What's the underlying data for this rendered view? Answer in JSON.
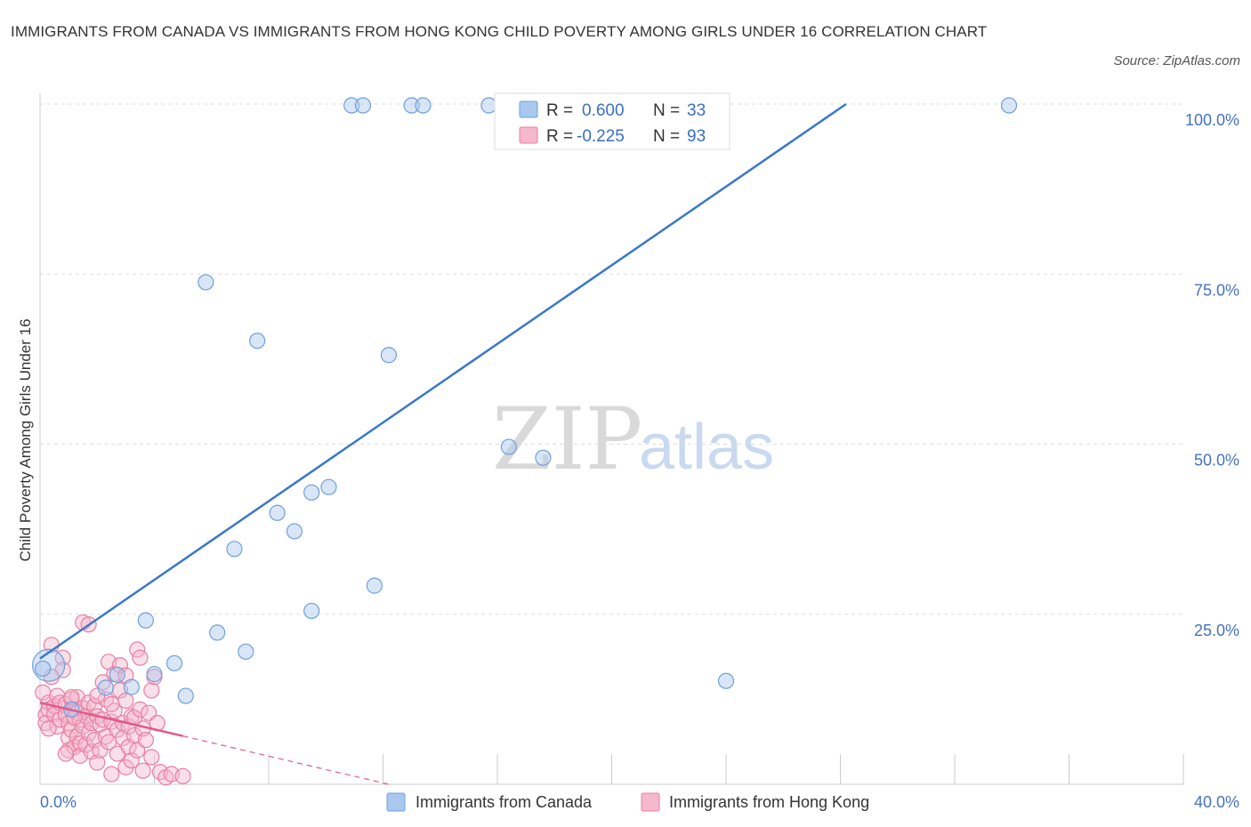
{
  "header": {
    "title": "IMMIGRANTS FROM CANADA VS IMMIGRANTS FROM HONG KONG CHILD POVERTY AMONG GIRLS UNDER 16 CORRELATION CHART",
    "source": "Source: ZipAtlas.com"
  },
  "watermark": {
    "zip": "ZIP",
    "atlas": "atlas"
  },
  "legend": {
    "r_label": "R =",
    "n_label": "N =",
    "canada": {
      "r": "0.600",
      "n": "33"
    },
    "hongkong": {
      "r": "-0.225",
      "n": "93"
    }
  },
  "bottom_legend": {
    "canada": "Immigrants from Canada",
    "hongkong": "Immigrants from Hong Kong"
  },
  "colors": {
    "canada_fill": "#aac8ee",
    "canada_stroke": "#6f9fdc",
    "canada_line": "#3a78c8",
    "hongkong_fill": "#f5b8cc",
    "hongkong_stroke": "#e87fa2",
    "hongkong_line": "#e05a8a",
    "grid": "#dddddd",
    "tick_text": "#4472c4"
  },
  "chart_data": {
    "type": "scatter",
    "title": "IMMIGRANTS FROM CANADA VS IMMIGRANTS FROM HONG KONG CHILD POVERTY AMONG GIRLS UNDER 16 CORRELATION CHART",
    "xlabel": "",
    "ylabel": "Child Poverty Among Girls Under 16",
    "xlim": [
      0,
      40
    ],
    "ylim": [
      0,
      100
    ],
    "x_tick_labels": [
      "0.0%",
      "40.0%"
    ],
    "y_tick_labels": [
      "25.0%",
      "50.0%",
      "75.0%",
      "100.0%"
    ],
    "y_ticks": [
      25,
      50,
      75,
      100
    ],
    "grid": true,
    "legend_position": "top-center",
    "series": [
      {
        "name": "Immigrants from Canada",
        "r": 0.6,
        "n": 33,
        "trend": {
          "x": [
            0,
            28.2
          ],
          "y": [
            18.5,
            100
          ]
        },
        "points": [
          [
            0.3,
            17.5
          ],
          [
            2.3,
            14.2
          ],
          [
            2.7,
            16.1
          ],
          [
            3.2,
            14.3
          ],
          [
            3.7,
            24.1
          ],
          [
            4.0,
            16.2
          ],
          [
            4.7,
            17.8
          ],
          [
            5.1,
            13.0
          ],
          [
            5.8,
            73.8
          ],
          [
            6.2,
            22.3
          ],
          [
            7.2,
            19.5
          ],
          [
            7.6,
            65.2
          ],
          [
            6.8,
            34.6
          ],
          [
            8.3,
            39.9
          ],
          [
            8.9,
            37.2
          ],
          [
            9.5,
            42.9
          ],
          [
            9.5,
            25.5
          ],
          [
            10.1,
            43.7
          ],
          [
            11.7,
            29.2
          ],
          [
            12.2,
            63.1
          ],
          [
            16.4,
            49.6
          ],
          [
            17.6,
            48.0
          ],
          [
            24.0,
            15.2
          ],
          [
            10.9,
            99.8
          ],
          [
            11.3,
            99.8
          ],
          [
            13.0,
            99.8
          ],
          [
            13.4,
            99.8
          ],
          [
            15.7,
            99.8
          ],
          [
            17.2,
            99.8
          ],
          [
            18.1,
            99.8
          ],
          [
            33.9,
            99.8
          ],
          [
            0.1,
            17.0
          ],
          [
            1.1,
            11.0
          ]
        ]
      },
      {
        "name": "Immigrants from Hong Kong",
        "r": -0.225,
        "n": 93,
        "trend_solid": {
          "x": [
            0,
            5.0
          ],
          "y": [
            12.0,
            7.1
          ]
        },
        "trend_dashed": {
          "x": [
            5.0,
            12.2
          ],
          "y": [
            7.1,
            0.0
          ]
        },
        "points": [
          [
            0.1,
            13.5
          ],
          [
            0.2,
            10.2
          ],
          [
            0.2,
            9.0
          ],
          [
            0.3,
            12.0
          ],
          [
            0.3,
            11.0
          ],
          [
            0.4,
            20.5
          ],
          [
            0.5,
            11.5
          ],
          [
            0.5,
            10.3
          ],
          [
            0.6,
            8.5
          ],
          [
            0.6,
            13.0
          ],
          [
            0.7,
            9.5
          ],
          [
            0.7,
            12.0
          ],
          [
            0.8,
            18.6
          ],
          [
            0.8,
            16.8
          ],
          [
            0.9,
            11.8
          ],
          [
            0.9,
            10.3
          ],
          [
            1.0,
            9.0
          ],
          [
            1.0,
            6.8
          ],
          [
            1.0,
            5.0
          ],
          [
            1.1,
            12.5
          ],
          [
            1.1,
            8.0
          ],
          [
            1.2,
            11.0
          ],
          [
            1.2,
            5.5
          ],
          [
            1.3,
            10.5
          ],
          [
            1.3,
            7.0
          ],
          [
            1.3,
            12.8
          ],
          [
            1.4,
            9.5
          ],
          [
            1.4,
            6.0
          ],
          [
            1.4,
            4.2
          ],
          [
            1.5,
            11.2
          ],
          [
            1.5,
            8.5
          ],
          [
            1.6,
            10.0
          ],
          [
            1.6,
            5.8
          ],
          [
            1.7,
            12.0
          ],
          [
            1.7,
            7.5
          ],
          [
            1.8,
            9.0
          ],
          [
            1.8,
            4.8
          ],
          [
            1.9,
            11.5
          ],
          [
            1.9,
            6.5
          ],
          [
            2.0,
            10.0
          ],
          [
            2.0,
            3.2
          ],
          [
            2.1,
            8.8
          ],
          [
            2.1,
            5.0
          ],
          [
            2.2,
            9.5
          ],
          [
            2.2,
            15.0
          ],
          [
            2.3,
            7.0
          ],
          [
            2.3,
            12.5
          ],
          [
            2.4,
            18.0
          ],
          [
            2.4,
            6.2
          ],
          [
            2.5,
            9.2
          ],
          [
            2.5,
            1.5
          ],
          [
            2.6,
            16.2
          ],
          [
            2.6,
            10.8
          ],
          [
            2.7,
            4.5
          ],
          [
            2.7,
            8.0
          ],
          [
            2.8,
            17.5
          ],
          [
            2.8,
            13.8
          ],
          [
            2.9,
            9.0
          ],
          [
            2.9,
            6.8
          ],
          [
            3.0,
            12.3
          ],
          [
            3.0,
            2.5
          ],
          [
            3.1,
            8.5
          ],
          [
            3.1,
            5.5
          ],
          [
            3.2,
            10.0
          ],
          [
            3.2,
            3.5
          ],
          [
            3.3,
            7.2
          ],
          [
            3.3,
            9.8
          ],
          [
            3.4,
            19.8
          ],
          [
            3.4,
            5.0
          ],
          [
            3.5,
            18.6
          ],
          [
            3.5,
            11.0
          ],
          [
            3.6,
            8.2
          ],
          [
            3.6,
            2.0
          ],
          [
            3.7,
            6.5
          ],
          [
            3.8,
            10.5
          ],
          [
            3.9,
            13.8
          ],
          [
            3.9,
            4.0
          ],
          [
            4.0,
            15.8
          ],
          [
            4.1,
            9.0
          ],
          [
            4.2,
            1.8
          ],
          [
            4.4,
            1.0
          ],
          [
            4.6,
            1.5
          ],
          [
            5.0,
            1.2
          ],
          [
            1.5,
            23.8
          ],
          [
            1.7,
            23.5
          ],
          [
            0.4,
            15.8
          ],
          [
            0.9,
            4.5
          ],
          [
            1.2,
            9.8
          ],
          [
            2.0,
            13.0
          ],
          [
            0.3,
            8.2
          ],
          [
            2.5,
            11.8
          ],
          [
            3.0,
            16.0
          ],
          [
            1.1,
            12.8
          ]
        ]
      }
    ]
  }
}
